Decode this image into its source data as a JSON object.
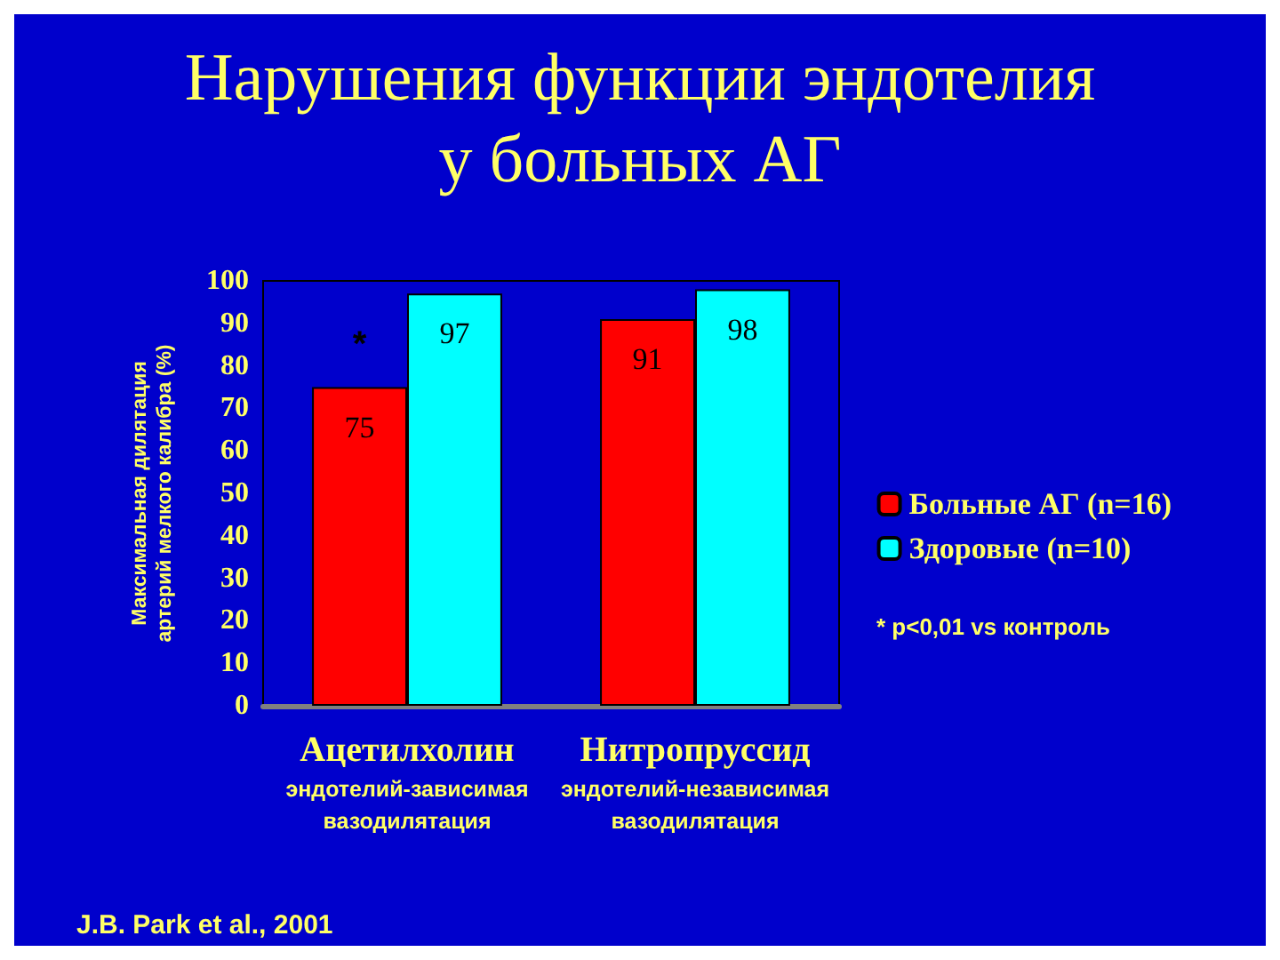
{
  "chart_data": {
    "type": "bar",
    "title": "Нарушения функции эндотелия\nу больных АГ",
    "ylabel": "Максимальная дилятация\nартерий мелкого калибра (%)",
    "categories": [
      "Ацетилхолин\nэндотелий-зависимая\nвазодилятация",
      "Нитропруссид\nэндотелий-независимая\nвазодилятация"
    ],
    "series": [
      {
        "name": "Больные АГ (n=16)",
        "color": "#ff0000",
        "values": [
          75,
          91
        ]
      },
      {
        "name": "Здоровые (n=10)",
        "color": "#00ffff",
        "values": [
          97,
          98
        ]
      }
    ],
    "ylim": [
      0,
      100
    ],
    "yticks": [
      0,
      10,
      20,
      30,
      40,
      50,
      60,
      70,
      80,
      90,
      100
    ],
    "data_labels": true,
    "legend": "right",
    "annotations": [
      {
        "text": "*",
        "x": "Ацетилхолин\nэндотелий-зависимая\nвазодилятация",
        "y": 85
      },
      "* p<0,01 vs контроль",
      "J.B. Park et al., 2001"
    ]
  }
}
